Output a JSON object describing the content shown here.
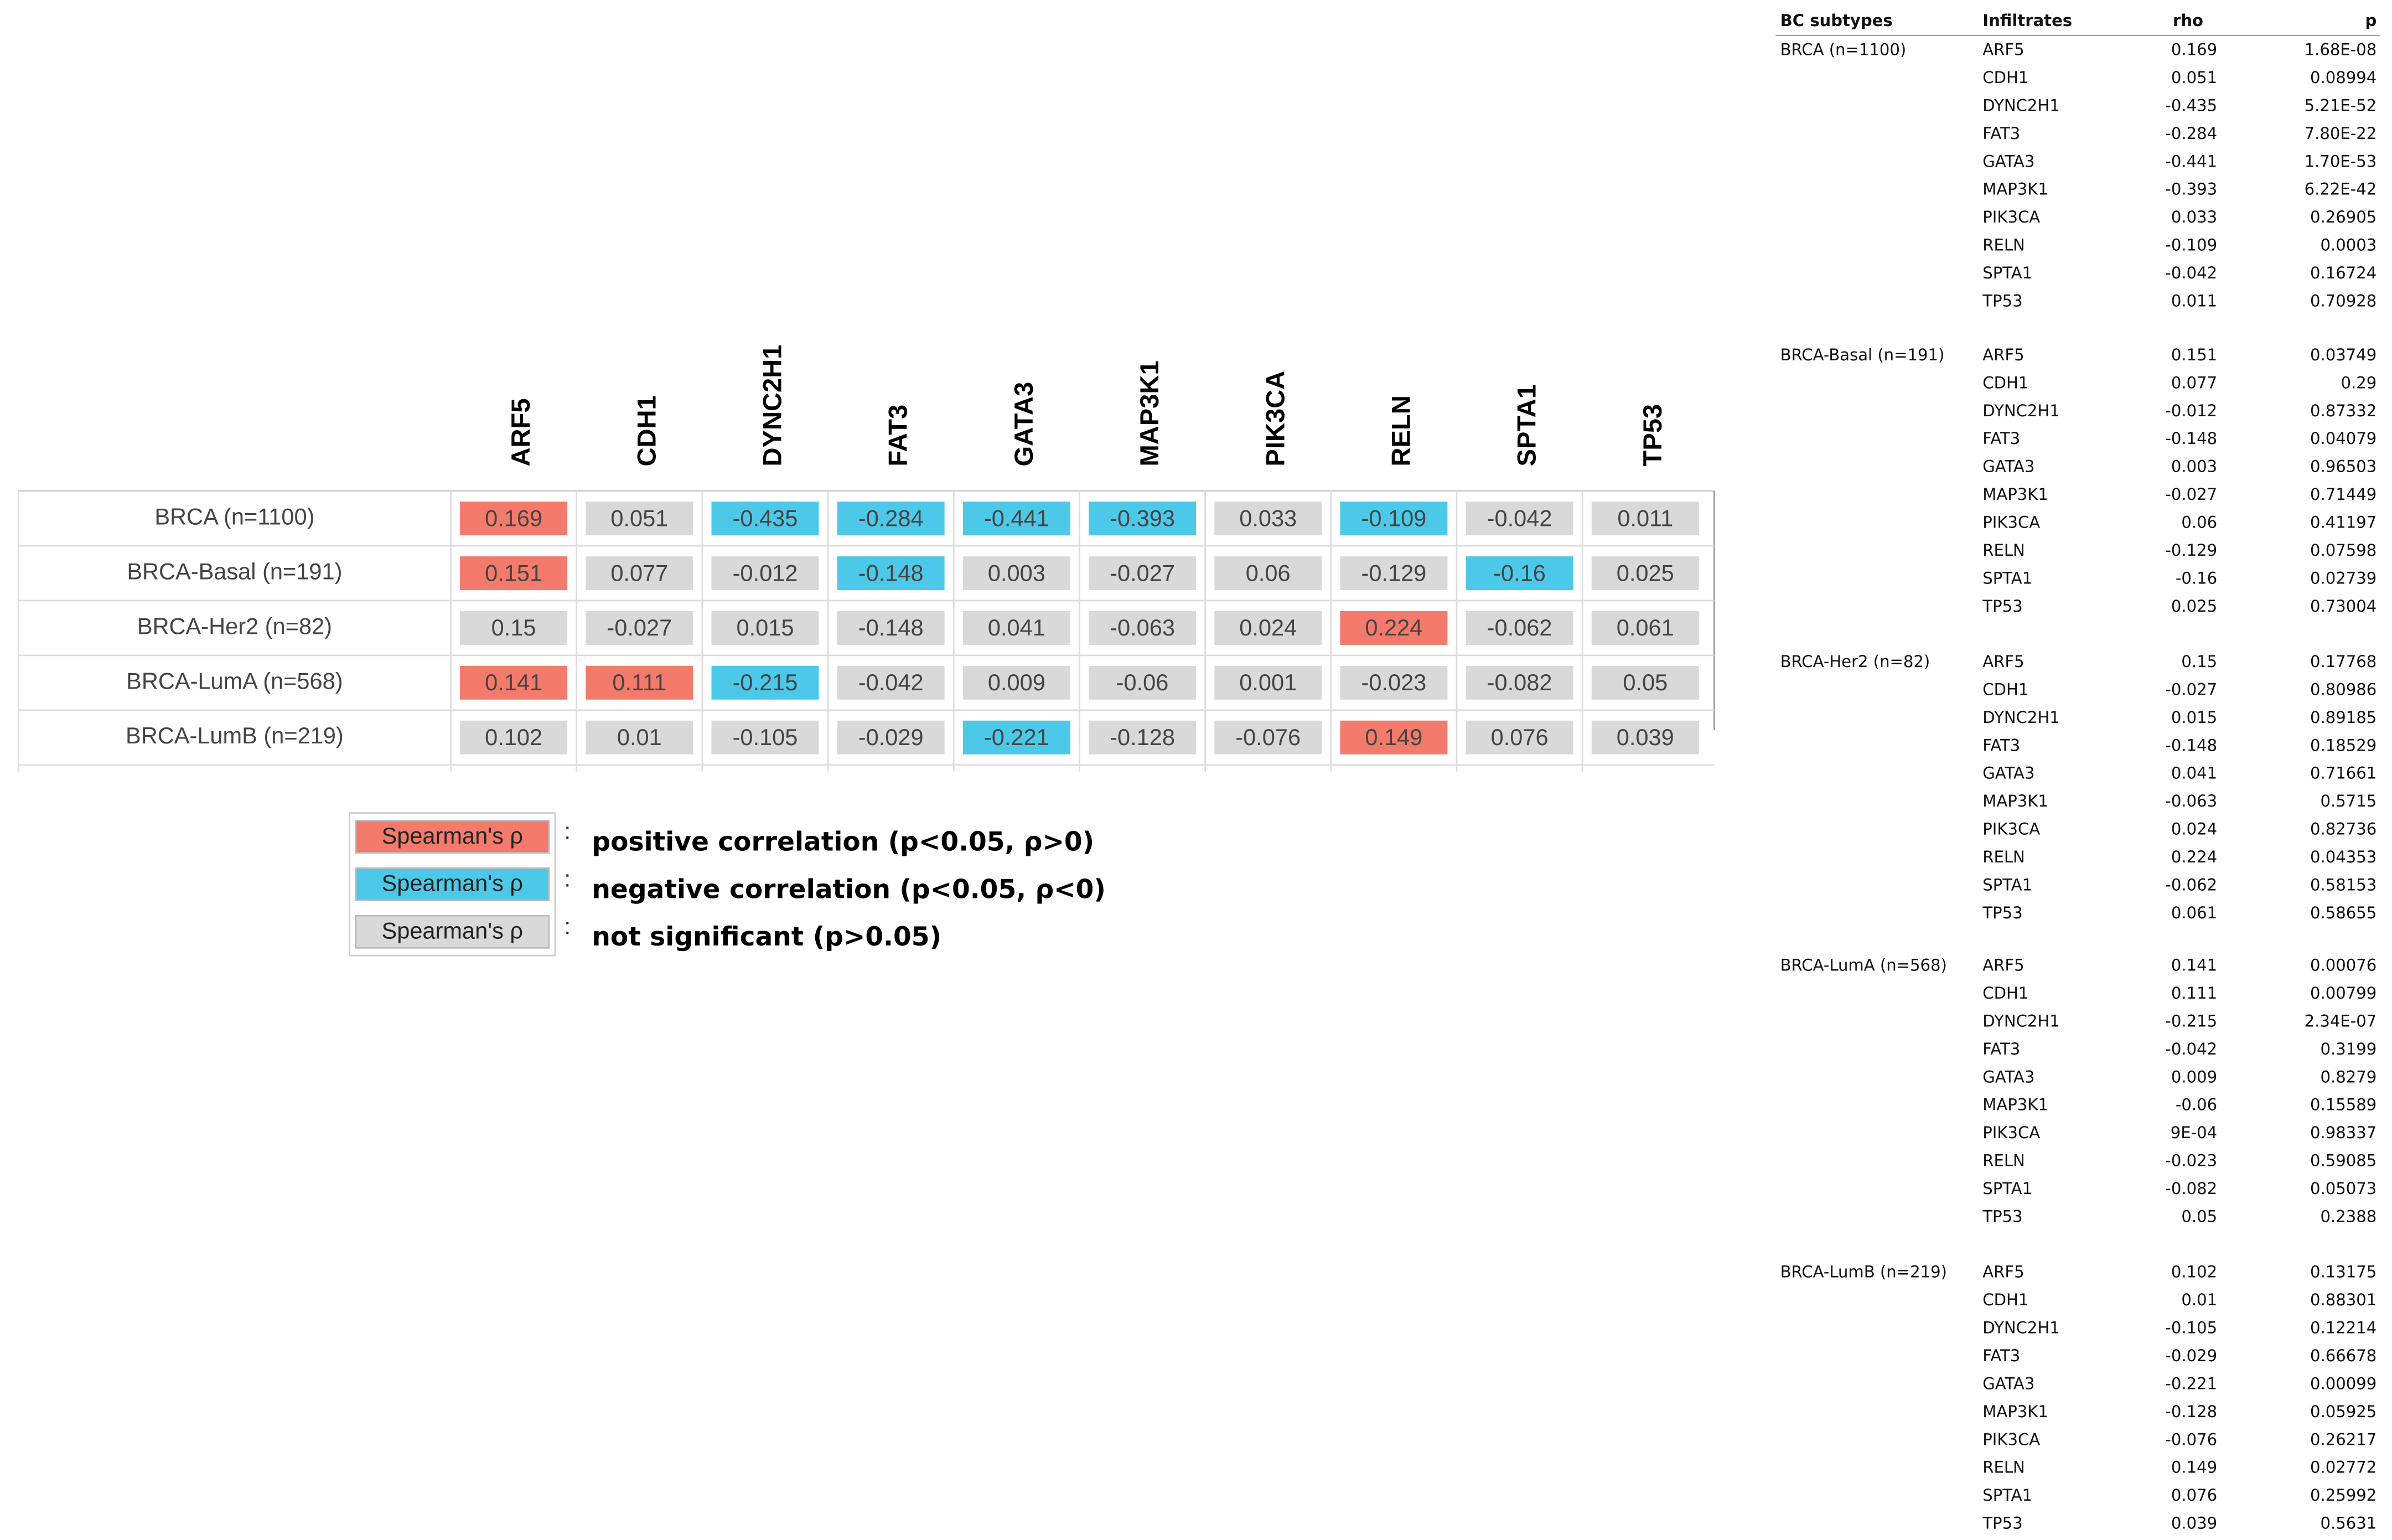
{
  "heatmap": {
    "columns": [
      "ARF5",
      "CDH1",
      "DYNC2H1",
      "FAT3",
      "GATA3",
      "MAP3K1",
      "PIK3CA",
      "RELN",
      "SPTA1",
      "TP53"
    ],
    "rows": [
      {
        "label": "BRCA (n=1100)",
        "values": [
          0.169,
          0.051,
          -0.435,
          -0.284,
          -0.441,
          -0.393,
          0.033,
          -0.109,
          -0.042,
          0.011
        ],
        "colors": [
          "#f47a6b",
          "#d9d9d9",
          "#4cc9e8",
          "#4cc9e8",
          "#4cc9e8",
          "#4cc9e8",
          "#d9d9d9",
          "#4cc9e8",
          "#d9d9d9",
          "#d9d9d9"
        ]
      },
      {
        "label": "BRCA-Basal (n=191)",
        "values": [
          0.151,
          0.077,
          -0.012,
          -0.148,
          0.003,
          -0.027,
          0.06,
          -0.129,
          -0.16,
          0.025
        ],
        "colors": [
          "#f47a6b",
          "#d9d9d9",
          "#d9d9d9",
          "#4cc9e8",
          "#d9d9d9",
          "#d9d9d9",
          "#d9d9d9",
          "#d9d9d9",
          "#4cc9e8",
          "#d9d9d9"
        ]
      },
      {
        "label": "BRCA-Her2 (n=82)",
        "values": [
          0.15,
          -0.027,
          0.015,
          -0.148,
          0.041,
          -0.063,
          0.024,
          0.224,
          -0.062,
          0.061
        ],
        "colors": [
          "#d9d9d9",
          "#d9d9d9",
          "#d9d9d9",
          "#d9d9d9",
          "#d9d9d9",
          "#d9d9d9",
          "#d9d9d9",
          "#f47a6b",
          "#d9d9d9",
          "#d9d9d9"
        ]
      },
      {
        "label": "BRCA-LumA (n=568)",
        "values": [
          0.141,
          0.111,
          -0.215,
          -0.042,
          0.009,
          -0.06,
          0.001,
          -0.023,
          -0.082,
          0.05
        ],
        "colors": [
          "#f47a6b",
          "#f47a6b",
          "#4cc9e8",
          "#d9d9d9",
          "#d9d9d9",
          "#d9d9d9",
          "#d9d9d9",
          "#d9d9d9",
          "#d9d9d9",
          "#d9d9d9"
        ]
      },
      {
        "label": "BRCA-LumB (n=219)",
        "values": [
          0.102,
          0.01,
          -0.105,
          -0.029,
          -0.221,
          -0.128,
          -0.076,
          0.149,
          0.076,
          0.039
        ],
        "colors": [
          "#d9d9d9",
          "#d9d9d9",
          "#d9d9d9",
          "#d9d9d9",
          "#4cc9e8",
          "#d9d9d9",
          "#d9d9d9",
          "#f47a6b",
          "#d9d9d9",
          "#d9d9d9"
        ]
      }
    ]
  },
  "legend": [
    {
      "box": "Spearman's ρ",
      "color": "#f47a6b",
      "separator": ":",
      "text": "positive correlation (p<0.05, ρ>0)"
    },
    {
      "box": "Spearman's ρ",
      "color": "#4cc9e8",
      "separator": ":",
      "text": "negative correlation (p<0.05, ρ<0)"
    },
    {
      "box": "Spearman's ρ",
      "color": "#d9d9d9",
      "separator": ":",
      "text": "not significant (p>0.05)"
    }
  ],
  "table": {
    "headers": [
      "BC subtypes",
      "Infiltrates",
      "rho",
      "p"
    ],
    "groups": [
      {
        "label": "BRCA (n=1100)",
        "rows": [
          [
            "ARF5",
            "0.169",
            "1.68E-08"
          ],
          [
            "CDH1",
            "0.051",
            "0.08994"
          ],
          [
            "DYNC2H1",
            "-0.435",
            "5.21E-52"
          ],
          [
            "FAT3",
            "-0.284",
            "7.80E-22"
          ],
          [
            "GATA3",
            "-0.441",
            "1.70E-53"
          ],
          [
            "MAP3K1",
            "-0.393",
            "6.22E-42"
          ],
          [
            "PIK3CA",
            "0.033",
            "0.26905"
          ],
          [
            "RELN",
            "-0.109",
            "0.0003"
          ],
          [
            "SPTA1",
            "-0.042",
            "0.16724"
          ],
          [
            "TP53",
            "0.011",
            "0.70928"
          ]
        ]
      },
      {
        "label": "BRCA-Basal (n=191)",
        "rows": [
          [
            "ARF5",
            "0.151",
            "0.03749"
          ],
          [
            "CDH1",
            "0.077",
            "0.29"
          ],
          [
            "DYNC2H1",
            "-0.012",
            "0.87332"
          ],
          [
            "FAT3",
            "-0.148",
            "0.04079"
          ],
          [
            "GATA3",
            "0.003",
            "0.96503"
          ],
          [
            "MAP3K1",
            "-0.027",
            "0.71449"
          ],
          [
            "PIK3CA",
            "0.06",
            "0.41197"
          ],
          [
            "RELN",
            "-0.129",
            "0.07598"
          ],
          [
            "SPTA1",
            "-0.16",
            "0.02739"
          ],
          [
            "TP53",
            "0.025",
            "0.73004"
          ]
        ]
      },
      {
        "label": "BRCA-Her2 (n=82)",
        "rows": [
          [
            "ARF5",
            "0.15",
            "0.17768"
          ],
          [
            "CDH1",
            "-0.027",
            "0.80986"
          ],
          [
            "DYNC2H1",
            "0.015",
            "0.89185"
          ],
          [
            "FAT3",
            "-0.148",
            "0.18529"
          ],
          [
            "GATA3",
            "0.041",
            "0.71661"
          ],
          [
            "MAP3K1",
            "-0.063",
            "0.5715"
          ],
          [
            "PIK3CA",
            "0.024",
            "0.82736"
          ],
          [
            "RELN",
            "0.224",
            "0.04353"
          ],
          [
            "SPTA1",
            "-0.062",
            "0.58153"
          ],
          [
            "TP53",
            "0.061",
            "0.58655"
          ]
        ]
      },
      {
        "label": "BRCA-LumA (n=568)",
        "rows": [
          [
            "ARF5",
            "0.141",
            "0.00076"
          ],
          [
            "CDH1",
            "0.111",
            "0.00799"
          ],
          [
            "DYNC2H1",
            "-0.215",
            "2.34E-07"
          ],
          [
            "FAT3",
            "-0.042",
            "0.3199"
          ],
          [
            "GATA3",
            "0.009",
            "0.8279"
          ],
          [
            "MAP3K1",
            "-0.06",
            "0.15589"
          ],
          [
            "PIK3CA",
            "9E-04",
            "0.98337"
          ],
          [
            "RELN",
            "-0.023",
            "0.59085"
          ],
          [
            "SPTA1",
            "-0.082",
            "0.05073"
          ],
          [
            "TP53",
            "0.05",
            "0.2388"
          ]
        ]
      },
      {
        "label": "BRCA-LumB (n=219)",
        "rows": [
          [
            "ARF5",
            "0.102",
            "0.13175"
          ],
          [
            "CDH1",
            "0.01",
            "0.88301"
          ],
          [
            "DYNC2H1",
            "-0.105",
            "0.12214"
          ],
          [
            "FAT3",
            "-0.029",
            "0.66678"
          ],
          [
            "GATA3",
            "-0.221",
            "0.00099"
          ],
          [
            "MAP3K1",
            "-0.128",
            "0.05925"
          ],
          [
            "PIK3CA",
            "-0.076",
            "0.26217"
          ],
          [
            "RELN",
            "0.149",
            "0.02772"
          ],
          [
            "SPTA1",
            "0.076",
            "0.25992"
          ],
          [
            "TP53",
            "0.039",
            "0.5631"
          ]
        ]
      }
    ]
  }
}
